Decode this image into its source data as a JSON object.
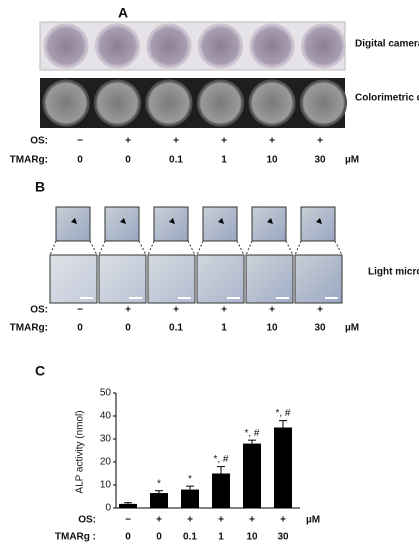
{
  "panel_a": {
    "label": "A",
    "row1_label": "Digital camera",
    "row2_label": "Colorimetric detector"
  },
  "panel_b": {
    "label": "B",
    "image_label": "Light microscope"
  },
  "treatments": {
    "os_label": "OS:",
    "os": [
      "−",
      "+",
      "+",
      "+",
      "+",
      "+"
    ],
    "tmarg_label": "TMARg:",
    "tmarg": [
      "0",
      "0",
      "0.1",
      "1",
      "10",
      "30"
    ],
    "unit": "µM"
  },
  "chart_data": {
    "type": "bar",
    "panel_label": "C",
    "y_label": "ALP activity (nmol)",
    "categories": [
      "0",
      "0",
      "0.1",
      "1",
      "10",
      "30"
    ],
    "values": [
      1.8,
      6.5,
      8,
      15,
      28,
      35
    ],
    "errors": [
      0.5,
      1,
      1.5,
      3,
      1.5,
      3
    ],
    "annotations": [
      null,
      "*",
      "*",
      "*, #",
      "*, #",
      "*, #"
    ],
    "color": "#000000",
    "ylim": [
      0,
      50
    ],
    "yticks": [
      0,
      10,
      20,
      30,
      40,
      50
    ],
    "os_label": "OS:",
    "os": [
      "−",
      "+",
      "+",
      "+",
      "+",
      "+"
    ],
    "tmarg_label": "TMARg :",
    "unit": "µM"
  }
}
